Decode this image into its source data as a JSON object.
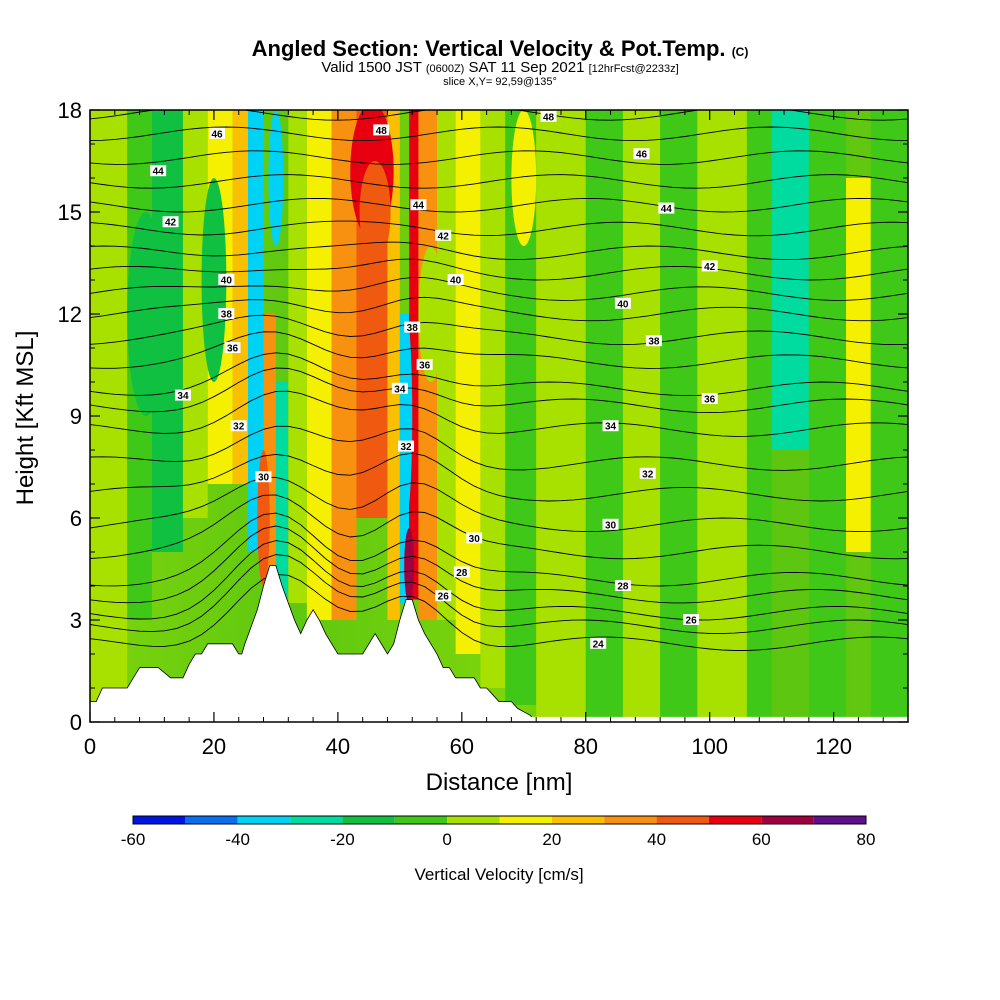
{
  "header": {
    "title_main": "Angled Section: Vertical Velocity & Pot.Temp.",
    "title_tag": "(C)",
    "valid_prefix": "Valid 1500 JST",
    "valid_z": "(0600Z)",
    "valid_date": "SAT 11 Sep 2021",
    "fcst": "[12hrFcst@2233z]",
    "slice": "slice X,Y= 92,59@135°"
  },
  "chart_data": {
    "type": "heatmap",
    "xlabel": "Distance [nm]",
    "ylabel": "Height [Kft MSL]",
    "xlim": [
      0,
      132
    ],
    "ylim": [
      0,
      18
    ],
    "x_ticks": [
      0,
      20,
      40,
      60,
      80,
      100,
      120
    ],
    "y_ticks": [
      0,
      3,
      6,
      9,
      12,
      15,
      18
    ],
    "colorbar": {
      "label": "Vertical Velocity [cm/s]",
      "ticks": [
        -60,
        -40,
        -20,
        0,
        20,
        40,
        60,
        80
      ],
      "bins": [
        -60,
        -50,
        -40,
        -30,
        -20,
        -10,
        0,
        10,
        20,
        30,
        40,
        50,
        60,
        70,
        80
      ],
      "colors": [
        "#0014e0",
        "#0a6ef0",
        "#00d2f5",
        "#00dca0",
        "#10c040",
        "#40c818",
        "#a8e000",
        "#f4f000",
        "#f8c000",
        "#f89010",
        "#f05a10",
        "#e80010",
        "#a00040",
        "#60108a"
      ]
    },
    "terrain": {
      "x": [
        0,
        1,
        2,
        5,
        6,
        8,
        9,
        11,
        13,
        15,
        16,
        17,
        18,
        19,
        20,
        21,
        22,
        23,
        24,
        24.5,
        25,
        26,
        27,
        28,
        29,
        30,
        31,
        32,
        33,
        34,
        35,
        36,
        37,
        38,
        39,
        40,
        41,
        42,
        43,
        44,
        45,
        46,
        47,
        48,
        49,
        50,
        51,
        52,
        53,
        54,
        55,
        56,
        57,
        58,
        59,
        60,
        61,
        62,
        63,
        64,
        65,
        66,
        67,
        68,
        69,
        70,
        71,
        72,
        73,
        132
      ],
      "z": [
        0.6,
        0.6,
        1.0,
        1.0,
        1.0,
        1.6,
        1.6,
        1.6,
        1.3,
        1.3,
        1.7,
        2.0,
        2.0,
        2.3,
        2.3,
        2.3,
        2.3,
        2.3,
        2.0,
        2.0,
        2.3,
        2.8,
        3.3,
        4.0,
        4.6,
        4.6,
        4.0,
        3.5,
        3.0,
        2.6,
        3.0,
        3.3,
        3.0,
        2.6,
        2.3,
        2.0,
        2.0,
        2.0,
        2.0,
        2.0,
        2.3,
        2.6,
        2.3,
        2.0,
        2.3,
        3.0,
        3.6,
        3.6,
        3.0,
        2.6,
        2.3,
        2.0,
        1.6,
        1.6,
        1.3,
        1.3,
        1.3,
        1.3,
        1.0,
        1.0,
        0.8,
        0.6,
        0.6,
        0.6,
        0.4,
        0.3,
        0.2,
        0.0,
        0.0,
        0.0
      ]
    },
    "theta_contours": [
      {
        "label": "24",
        "ref_y": 2.3
      },
      {
        "label": "26",
        "ref_y": 2.8
      },
      {
        "label": "26",
        "ref_y": 3.2
      },
      {
        "label": "28",
        "ref_y": 3.7
      },
      {
        "label": "28",
        "ref_y": 4.2
      },
      {
        "label": "30",
        "ref_y": 5.0
      },
      {
        "label": "30",
        "ref_y": 5.8
      },
      {
        "label": "32",
        "ref_y": 6.7
      },
      {
        "label": "32",
        "ref_y": 7.6
      },
      {
        "label": "34",
        "ref_y": 8.6
      },
      {
        "label": "34",
        "ref_y": 9.3
      },
      {
        "label": "36",
        "ref_y": 9.8
      },
      {
        "label": "36",
        "ref_y": 10.6
      },
      {
        "label": "38",
        "ref_y": 11.3
      },
      {
        "label": "38",
        "ref_y": 12.0
      },
      {
        "label": "40",
        "ref_y": 12.6
      },
      {
        "label": "40",
        "ref_y": 13.2
      },
      {
        "label": "42",
        "ref_y": 13.8
      },
      {
        "label": "42",
        "ref_y": 14.5
      },
      {
        "label": "44",
        "ref_y": 15.2
      },
      {
        "label": "44",
        "ref_y": 15.9
      },
      {
        "label": "46",
        "ref_y": 16.6
      },
      {
        "label": "46",
        "ref_y": 17.3
      },
      {
        "label": "48",
        "ref_y": 17.9
      }
    ],
    "contour_labels": [
      {
        "text": "48",
        "x": 74,
        "y": 17.8
      },
      {
        "text": "46",
        "x": 20.5,
        "y": 17.3
      },
      {
        "text": "48",
        "x": 47,
        "y": 17.4
      },
      {
        "text": "46",
        "x": 89,
        "y": 16.7
      },
      {
        "text": "44",
        "x": 11,
        "y": 16.2
      },
      {
        "text": "44",
        "x": 53,
        "y": 15.2
      },
      {
        "text": "44",
        "x": 93,
        "y": 15.1
      },
      {
        "text": "42",
        "x": 13,
        "y": 14.7
      },
      {
        "text": "42",
        "x": 57,
        "y": 14.3
      },
      {
        "text": "42",
        "x": 100,
        "y": 13.4
      },
      {
        "text": "40",
        "x": 22,
        "y": 13.0
      },
      {
        "text": "40",
        "x": 59,
        "y": 13.0
      },
      {
        "text": "40",
        "x": 86,
        "y": 12.3
      },
      {
        "text": "38",
        "x": 22,
        "y": 12.0
      },
      {
        "text": "38",
        "x": 52,
        "y": 11.6
      },
      {
        "text": "38",
        "x": 91,
        "y": 11.2
      },
      {
        "text": "36",
        "x": 23,
        "y": 11.0
      },
      {
        "text": "36",
        "x": 54,
        "y": 10.5
      },
      {
        "text": "36",
        "x": 100,
        "y": 9.5
      },
      {
        "text": "34",
        "x": 15,
        "y": 9.6
      },
      {
        "text": "34",
        "x": 50,
        "y": 9.8
      },
      {
        "text": "34",
        "x": 84,
        "y": 8.7
      },
      {
        "text": "32",
        "x": 24,
        "y": 8.7
      },
      {
        "text": "32",
        "x": 51,
        "y": 8.1
      },
      {
        "text": "32",
        "x": 90,
        "y": 7.3
      },
      {
        "text": "30",
        "x": 28,
        "y": 7.2
      },
      {
        "text": "30",
        "x": 84,
        "y": 5.8
      },
      {
        "text": "30",
        "x": 62,
        "y": 5.4
      },
      {
        "text": "28",
        "x": 60,
        "y": 4.4
      },
      {
        "text": "28",
        "x": 86,
        "y": 4.0
      },
      {
        "text": "26",
        "x": 57,
        "y": 3.7
      },
      {
        "text": "26",
        "x": 97,
        "y": 3.0
      },
      {
        "text": "24",
        "x": 82,
        "y": 2.3
      }
    ]
  }
}
